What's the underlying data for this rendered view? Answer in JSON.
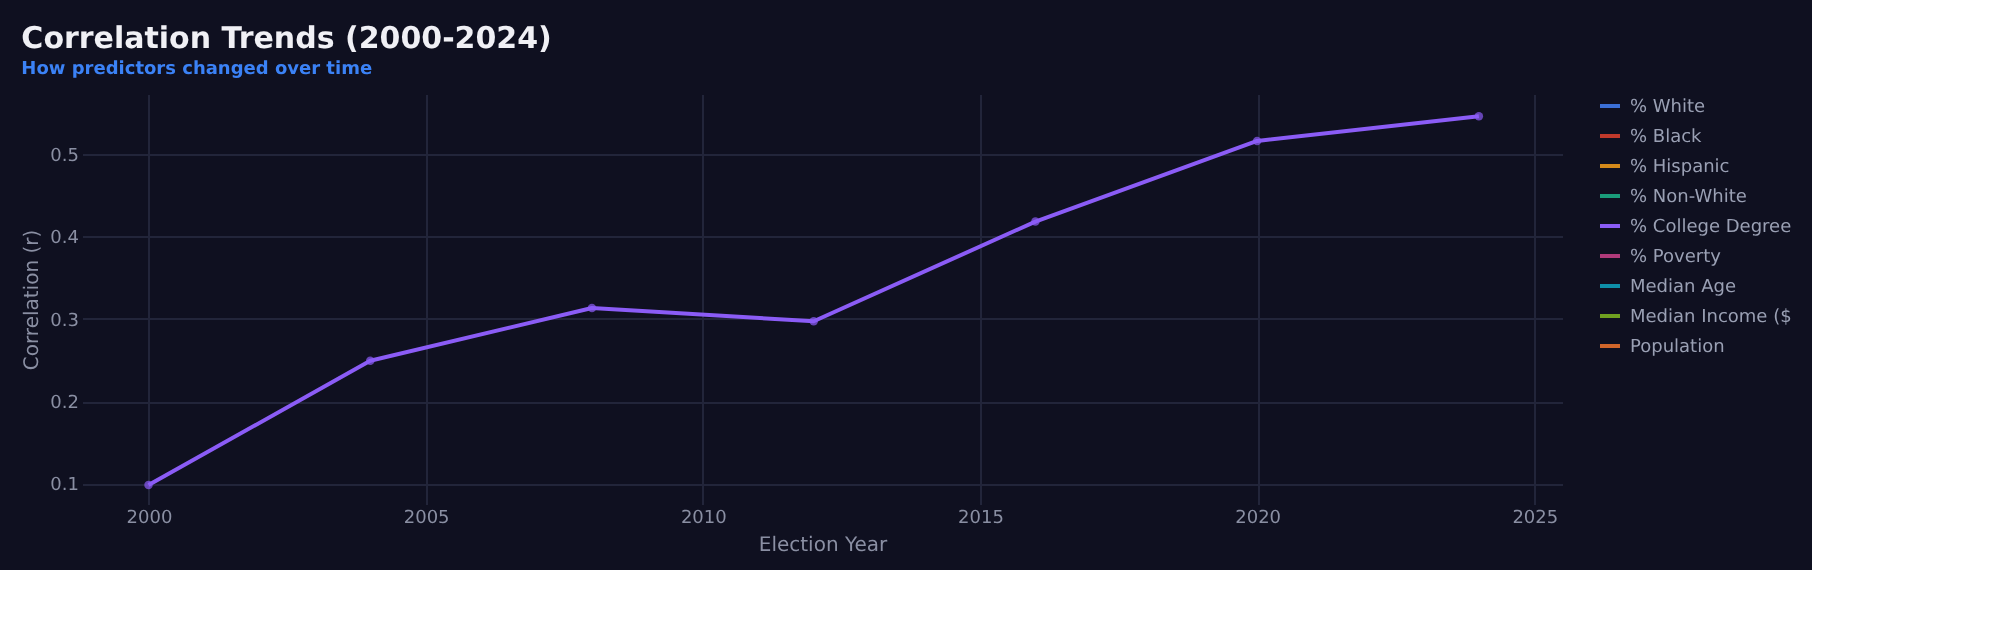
{
  "chart_data": {
    "type": "line",
    "title": "Correlation Trends (2000-2024)",
    "subtitle": "How predictors changed over time",
    "xlabel": "Election Year",
    "ylabel": "Correlation (r)",
    "x": [
      2000,
      2004,
      2008,
      2012,
      2016,
      2020,
      2024
    ],
    "series": [
      {
        "name": "% White",
        "color": "#3b6fd6",
        "values": [
          null,
          null,
          null,
          null,
          null,
          null,
          null
        ]
      },
      {
        "name": "% Black",
        "color": "#c0392b",
        "values": [
          null,
          null,
          null,
          null,
          null,
          null,
          null
        ]
      },
      {
        "name": "% Hispanic",
        "color": "#d4891a",
        "values": [
          null,
          null,
          null,
          null,
          null,
          null,
          null
        ]
      },
      {
        "name": "% Non-White",
        "color": "#1a9c7a",
        "values": [
          null,
          null,
          null,
          null,
          null,
          null,
          null
        ]
      },
      {
        "name": "% College Degree",
        "color": "#8b5cf6",
        "values": [
          0.098,
          0.249,
          0.313,
          0.297,
          0.418,
          0.516,
          0.546
        ]
      },
      {
        "name": "% Poverty",
        "color": "#b03a7a",
        "values": [
          null,
          null,
          null,
          null,
          null,
          null,
          null
        ]
      },
      {
        "name": "Median Age",
        "color": "#0e8fa8",
        "values": [
          null,
          null,
          null,
          null,
          null,
          null,
          null
        ]
      },
      {
        "name": "Median Income ($",
        "color": "#6fa020",
        "values": [
          null,
          null,
          null,
          null,
          null,
          null,
          null
        ]
      },
      {
        "name": "Population",
        "color": "#d0652a",
        "values": [
          null,
          null,
          null,
          null,
          null,
          null,
          null
        ]
      }
    ],
    "xlim": [
      1998.8,
      2025.5
    ],
    "xticks": [
      2000,
      2005,
      2010,
      2015,
      2020,
      2025
    ],
    "ylim": [
      0.075,
      0.573
    ],
    "yticks": [
      0.1,
      0.2,
      0.3,
      0.4,
      0.5
    ],
    "grid": true,
    "legend": "top right",
    "marker": "circle",
    "line_style": "solid"
  }
}
